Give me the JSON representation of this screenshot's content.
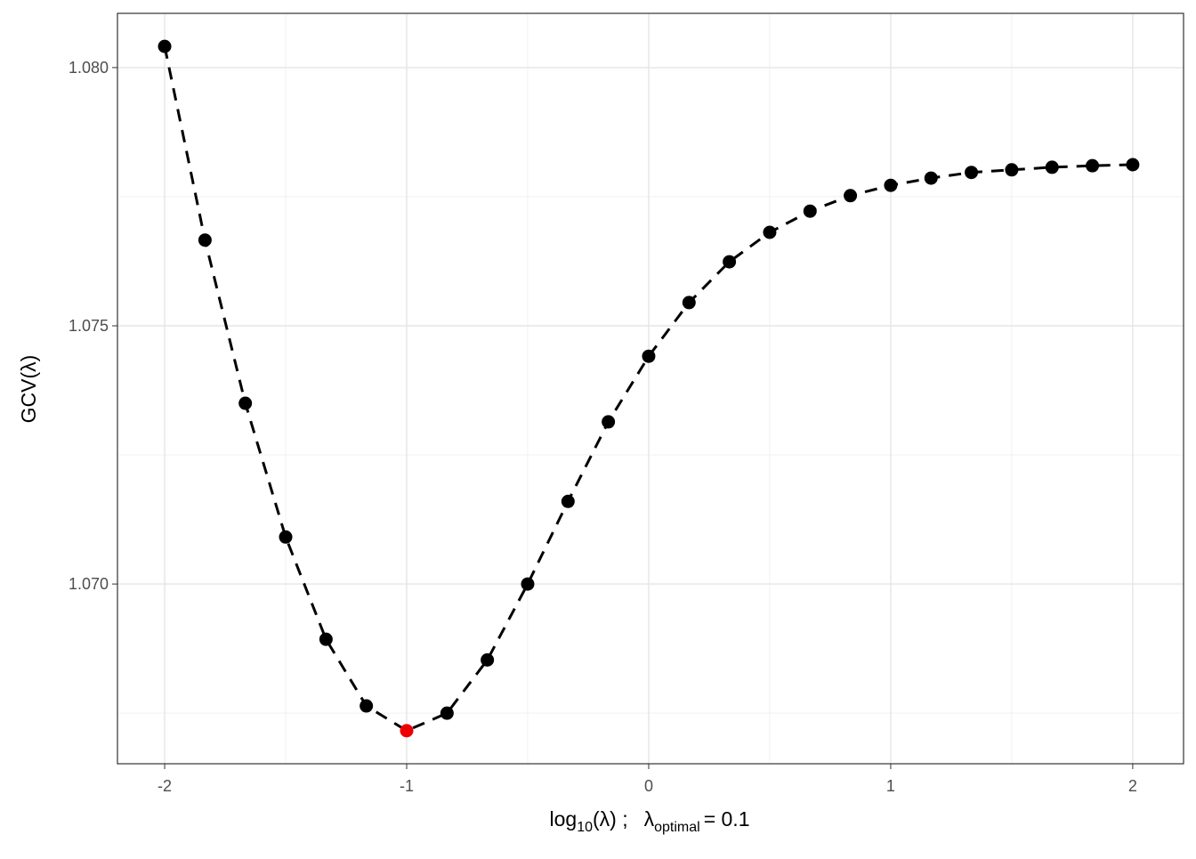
{
  "chart_data": {
    "type": "line",
    "x_label_parts": [
      "log",
      "10",
      "(λ) ;",
      "λ",
      "optimal",
      "= 0.1"
    ],
    "y_label": "GCV(λ)",
    "x": [
      -2,
      -1.8333,
      -1.6667,
      -1.5,
      -1.3333,
      -1.1667,
      -1,
      -0.8333,
      -0.6667,
      -0.5,
      -0.3333,
      -0.1667,
      0,
      0.1667,
      0.3333,
      0.5,
      0.6667,
      0.8333,
      1,
      1.1667,
      1.3333,
      1.5,
      1.6667,
      1.8333,
      2
    ],
    "series": [
      {
        "color": "#000000",
        "values": [
          1.08041,
          1.07666,
          1.0735,
          1.07091,
          1.06893,
          1.06764,
          1.06716,
          1.0675,
          1.06853,
          1.07,
          1.0716,
          1.07314,
          1.07441,
          1.07545,
          1.07624,
          1.07681,
          1.07722,
          1.07752,
          1.07772,
          1.07786,
          1.07797,
          1.07802,
          1.07807,
          1.0781,
          1.07812
        ]
      }
    ],
    "highlight_index": 6,
    "highlight_color": "#ee0000",
    "line_style": "dashed",
    "xlim": [
      -2.195,
      2.21
    ],
    "ylim": [
      1.06652,
      1.08105
    ],
    "xticks": [
      -2,
      -1,
      0,
      1,
      2
    ],
    "yticks": [
      {
        "value": 1.07,
        "label": "1.070"
      },
      {
        "value": 1.075,
        "label": "1.075"
      },
      {
        "value": 1.08,
        "label": "1.080"
      }
    ],
    "xminorticks": [
      -1.5,
      -0.5,
      0.5,
      1.5
    ],
    "yminorticks": [
      1.0675,
      1.0725,
      1.0775
    ],
    "grid": true
  }
}
